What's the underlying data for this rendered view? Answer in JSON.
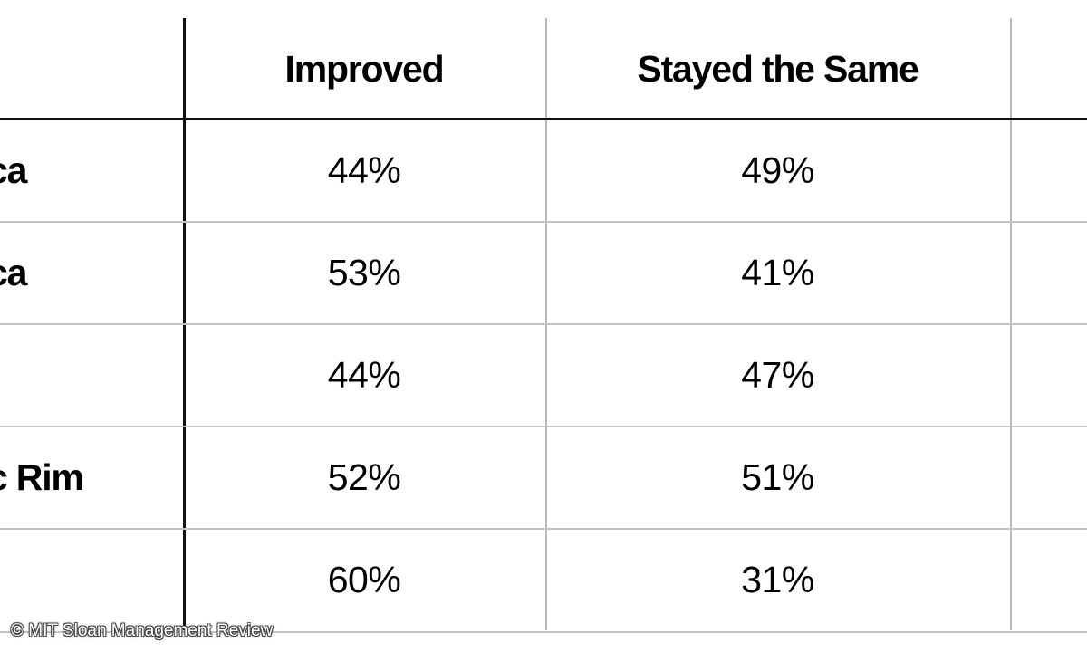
{
  "chart_data": {
    "type": "table",
    "columns": [
      "",
      "Improved",
      "Stayed the Same"
    ],
    "rows": [
      {
        "label": "ca",
        "values": [
          "44%",
          "49%"
        ]
      },
      {
        "label": "ca",
        "values": [
          "53%",
          "41%"
        ]
      },
      {
        "label": "",
        "values": [
          "44%",
          "47%"
        ]
      },
      {
        "label": "c Rim",
        "values": [
          "52%",
          "51%"
        ]
      },
      {
        "label": "",
        "values": [
          "60%",
          "31%"
        ]
      }
    ]
  },
  "watermark": {
    "text": "© MIT Sloan Management Review"
  }
}
